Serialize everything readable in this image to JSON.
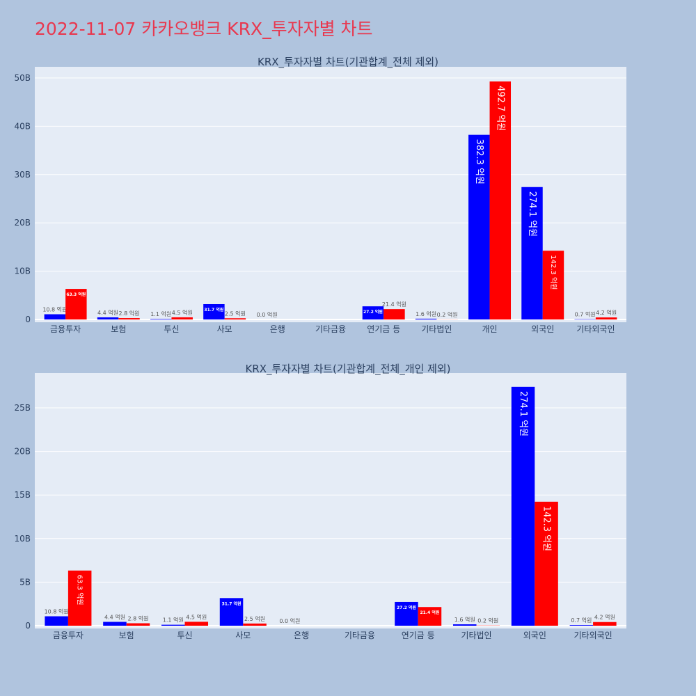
{
  "page": {
    "title": "2022-11-07 카카오뱅크 KRX_투자자별 차트",
    "title_color": "#e8384f",
    "background": "#b0c4de",
    "plot_background": "#e5ecf6"
  },
  "chart_data": [
    {
      "type": "bar",
      "title": "KRX_투자자별 차트(기관합계_전체 제외)",
      "categories": [
        "금융투자",
        "보험",
        "투신",
        "사모",
        "은행",
        "기타금융",
        "연기금 등",
        "기타법인",
        "개인",
        "외국인",
        "기타외국인"
      ],
      "yticks": [
        "0",
        "10B",
        "20B",
        "30B",
        "40B",
        "50B"
      ],
      "ylim": [
        0,
        52
      ],
      "grid": true,
      "legend": "none",
      "series": [
        {
          "color": "#0000ff",
          "values": [
            1.08,
            0.44,
            0.11,
            3.17,
            0.0,
            null,
            2.72,
            0.16,
            38.23,
            27.41,
            0.07
          ],
          "labels": [
            "10.8 억원",
            "4.4 억원",
            "1.1 억원",
            "31.7 억원",
            "0.0 억원",
            "",
            "27.2 억원",
            "1.6 억원",
            "382.3 억원",
            "274.1 억원",
            "0.7 억원"
          ]
        },
        {
          "color": "#ff0000",
          "values": [
            6.33,
            0.28,
            0.45,
            0.25,
            null,
            null,
            2.14,
            0.02,
            49.27,
            14.23,
            0.42
          ],
          "labels": [
            "63.3 억원",
            "2.8 억원",
            "4.5 억원",
            "2.5 억원",
            "",
            "",
            "21.4 억원",
            "0.2 억원",
            "492.7 억원",
            "142.3 억원",
            "4.2 억원"
          ]
        }
      ]
    },
    {
      "type": "bar",
      "title": "KRX_투자자별 차트(기관합계_전체_개인 제외)",
      "categories": [
        "금융투자",
        "보험",
        "투신",
        "사모",
        "은행",
        "기타금융",
        "연기금 등",
        "기타법인",
        "외국인",
        "기타외국인"
      ],
      "yticks": [
        "0",
        "5B",
        "10B",
        "15B",
        "20B",
        "25B"
      ],
      "ylim": [
        0,
        29
      ],
      "grid": true,
      "legend": "none",
      "series": [
        {
          "color": "#0000ff",
          "values": [
            1.08,
            0.44,
            0.11,
            3.17,
            0.0,
            null,
            2.72,
            0.16,
            27.41,
            0.07
          ],
          "labels": [
            "10.8 억원",
            "4.4 억원",
            "1.1 억원",
            "31.7 억원",
            "0.0 억원",
            "",
            "27.2 억원",
            "1.6 억원",
            "274.1 억원",
            "0.7 억원"
          ]
        },
        {
          "color": "#ff0000",
          "values": [
            6.33,
            0.28,
            0.45,
            0.25,
            null,
            null,
            2.14,
            0.02,
            14.23,
            0.42
          ],
          "labels": [
            "63.3 억원",
            "2.8 억원",
            "4.5 억원",
            "2.5 억원",
            "",
            "",
            "21.4 억원",
            "0.2 억원",
            "142.3 억원",
            "4.2 억원"
          ]
        }
      ]
    }
  ]
}
